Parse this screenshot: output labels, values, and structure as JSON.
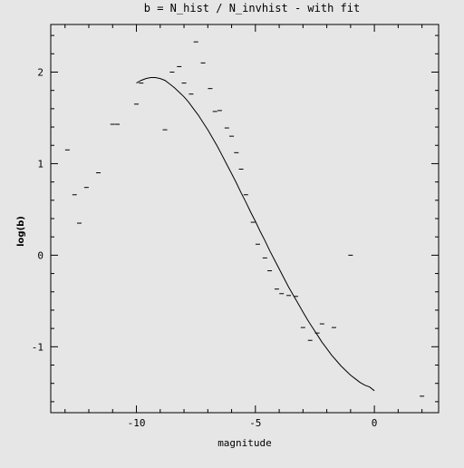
{
  "chart_data": {
    "type": "scatter",
    "title": "b = N_hist / N_invhist - with fit",
    "xlabel": "magnitude",
    "ylabel": "log(b)",
    "xlim": [
      -13.6,
      2.7
    ],
    "ylim": [
      -1.72,
      2.52
    ],
    "x_ticks": [
      -10,
      -5,
      0
    ],
    "y_ticks": [
      -1,
      0,
      1,
      2
    ],
    "grid": false,
    "points": [
      {
        "x": -12.9,
        "y": 1.15
      },
      {
        "x": -12.6,
        "y": 0.66
      },
      {
        "x": -12.4,
        "y": 0.35
      },
      {
        "x": -12.1,
        "y": 0.74
      },
      {
        "x": -11.6,
        "y": 0.9
      },
      {
        "x": -11.0,
        "y": 1.43
      },
      {
        "x": -10.8,
        "y": 1.43
      },
      {
        "x": -10.0,
        "y": 1.65
      },
      {
        "x": -9.8,
        "y": 1.88
      },
      {
        "x": -8.8,
        "y": 1.37
      },
      {
        "x": -8.5,
        "y": 2.0
      },
      {
        "x": -8.2,
        "y": 2.06
      },
      {
        "x": -8.0,
        "y": 1.88
      },
      {
        "x": -7.7,
        "y": 1.76
      },
      {
        "x": -7.5,
        "y": 2.33
      },
      {
        "x": -7.2,
        "y": 2.1
      },
      {
        "x": -6.9,
        "y": 1.82
      },
      {
        "x": -6.7,
        "y": 1.57
      },
      {
        "x": -6.5,
        "y": 1.58
      },
      {
        "x": -6.2,
        "y": 1.39
      },
      {
        "x": -6.0,
        "y": 1.3
      },
      {
        "x": -5.8,
        "y": 1.12
      },
      {
        "x": -5.6,
        "y": 0.94
      },
      {
        "x": -5.4,
        "y": 0.66
      },
      {
        "x": -5.1,
        "y": 0.36
      },
      {
        "x": -4.9,
        "y": 0.12
      },
      {
        "x": -4.6,
        "y": -0.03
      },
      {
        "x": -4.4,
        "y": -0.17
      },
      {
        "x": -4.1,
        "y": -0.37
      },
      {
        "x": -3.9,
        "y": -0.42
      },
      {
        "x": -3.6,
        "y": -0.44
      },
      {
        "x": -3.3,
        "y": -0.45
      },
      {
        "x": -3.0,
        "y": -0.79
      },
      {
        "x": -2.7,
        "y": -0.93
      },
      {
        "x": -2.4,
        "y": -0.85
      },
      {
        "x": -2.2,
        "y": -0.75
      },
      {
        "x": -1.7,
        "y": -0.79
      },
      {
        "x": -1.0,
        "y": 0.0
      },
      {
        "x": 2.0,
        "y": -1.54
      }
    ],
    "fit_curve": [
      {
        "x": -10.0,
        "y": 1.88
      },
      {
        "x": -9.8,
        "y": 1.91
      },
      {
        "x": -9.6,
        "y": 1.93
      },
      {
        "x": -9.4,
        "y": 1.94
      },
      {
        "x": -9.2,
        "y": 1.94
      },
      {
        "x": -9.0,
        "y": 1.93
      },
      {
        "x": -8.8,
        "y": 1.91
      },
      {
        "x": -8.6,
        "y": 1.87
      },
      {
        "x": -8.4,
        "y": 1.83
      },
      {
        "x": -8.2,
        "y": 1.78
      },
      {
        "x": -8.0,
        "y": 1.73
      },
      {
        "x": -7.8,
        "y": 1.67
      },
      {
        "x": -7.6,
        "y": 1.6
      },
      {
        "x": -7.4,
        "y": 1.53
      },
      {
        "x": -7.2,
        "y": 1.45
      },
      {
        "x": -7.0,
        "y": 1.37
      },
      {
        "x": -6.8,
        "y": 1.28
      },
      {
        "x": -6.6,
        "y": 1.19
      },
      {
        "x": -6.4,
        "y": 1.09
      },
      {
        "x": -6.2,
        "y": 0.99
      },
      {
        "x": -6.0,
        "y": 0.89
      },
      {
        "x": -5.8,
        "y": 0.79
      },
      {
        "x": -5.6,
        "y": 0.68
      },
      {
        "x": -5.4,
        "y": 0.58
      },
      {
        "x": -5.2,
        "y": 0.47
      },
      {
        "x": -5.0,
        "y": 0.37
      },
      {
        "x": -4.8,
        "y": 0.26
      },
      {
        "x": -4.6,
        "y": 0.16
      },
      {
        "x": -4.4,
        "y": 0.05
      },
      {
        "x": -4.2,
        "y": -0.05
      },
      {
        "x": -4.0,
        "y": -0.15
      },
      {
        "x": -3.8,
        "y": -0.25
      },
      {
        "x": -3.6,
        "y": -0.35
      },
      {
        "x": -3.4,
        "y": -0.44
      },
      {
        "x": -3.2,
        "y": -0.53
      },
      {
        "x": -3.0,
        "y": -0.62
      },
      {
        "x": -2.8,
        "y": -0.71
      },
      {
        "x": -2.6,
        "y": -0.79
      },
      {
        "x": -2.4,
        "y": -0.87
      },
      {
        "x": -2.2,
        "y": -0.95
      },
      {
        "x": -2.0,
        "y": -1.02
      },
      {
        "x": -1.8,
        "y": -1.09
      },
      {
        "x": -1.6,
        "y": -1.15
      },
      {
        "x": -1.4,
        "y": -1.21
      },
      {
        "x": -1.2,
        "y": -1.26
      },
      {
        "x": -1.0,
        "y": -1.31
      },
      {
        "x": -0.8,
        "y": -1.35
      },
      {
        "x": -0.6,
        "y": -1.39
      },
      {
        "x": -0.4,
        "y": -1.42
      },
      {
        "x": -0.2,
        "y": -1.44
      },
      {
        "x": 0.0,
        "y": -1.48
      }
    ]
  }
}
